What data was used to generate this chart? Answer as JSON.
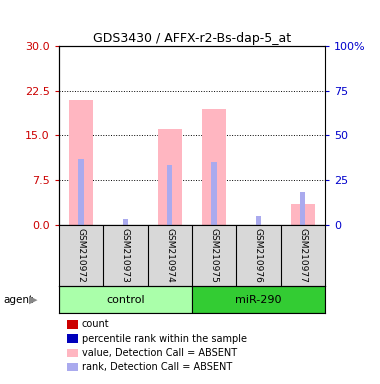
{
  "title": "GDS3430 / AFFX-r2-Bs-dap-5_at",
  "samples": [
    "GSM210972",
    "GSM210973",
    "GSM210974",
    "GSM210975",
    "GSM210976",
    "GSM210977"
  ],
  "groups": [
    {
      "name": "control",
      "color": "#AAFFAA",
      "samples_idx": [
        0,
        1,
        2
      ]
    },
    {
      "name": "miR-290",
      "color": "#33CC33",
      "samples_idx": [
        3,
        4,
        5
      ]
    }
  ],
  "pink_bar_heights": [
    21.0,
    0.0,
    16.0,
    19.5,
    0.0,
    3.5
  ],
  "blue_bar_heights": [
    11.0,
    1.0,
    10.0,
    10.5,
    1.5,
    5.5
  ],
  "left_ylim": [
    0,
    30
  ],
  "left_yticks": [
    0,
    7.5,
    15,
    22.5,
    30
  ],
  "right_ytick_positions": [
    0,
    7.5,
    15,
    22.5,
    30
  ],
  "right_yticklabels": [
    "0",
    "25",
    "50",
    "75",
    "100%"
  ],
  "pink_color": "#FFB6C1",
  "blue_color": "#AAAAEE",
  "legend_items": [
    {
      "color": "#CC0000",
      "label": "count"
    },
    {
      "color": "#0000BB",
      "label": "percentile rank within the sample"
    },
    {
      "color": "#FFB6C1",
      "label": "value, Detection Call = ABSENT"
    },
    {
      "color": "#AAAAEE",
      "label": "rank, Detection Call = ABSENT"
    }
  ],
  "pink_bar_width": 0.55,
  "blue_bar_width": 0.12,
  "bg_color": "#D8D8D8"
}
